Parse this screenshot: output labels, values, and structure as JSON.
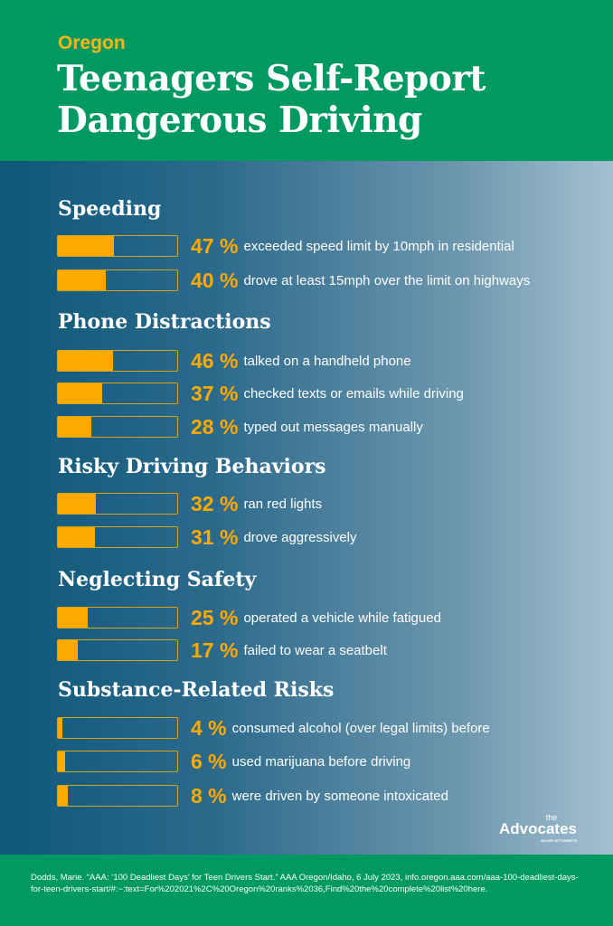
{
  "header": {
    "state": "Oregon",
    "title_line1": "Teenagers Self-Report",
    "title_line2": "Dangerous Driving"
  },
  "chart_data": {
    "type": "bar",
    "title": "Teenagers Self-Report Dangerous Driving",
    "unit": "%",
    "xlim": [
      0,
      100
    ],
    "groups": [
      {
        "name": "Speeding",
        "items": [
          {
            "value": 47,
            "label": "47 %",
            "desc": "exceeded speed limit by 10mph in residential"
          },
          {
            "value": 40,
            "label": "40 %",
            "desc": "drove at least 15mph over the limit on highways"
          }
        ]
      },
      {
        "name": "Phone Distractions",
        "items": [
          {
            "value": 46,
            "label": "46 %",
            "desc": "talked on a handheld phone"
          },
          {
            "value": 37,
            "label": "37 %",
            "desc": "checked texts or emails while driving"
          },
          {
            "value": 28,
            "label": "28 %",
            "desc": "typed out messages manually"
          }
        ]
      },
      {
        "name": "Risky Driving Behaviors",
        "items": [
          {
            "value": 32,
            "label": "32 %",
            "desc": "ran red lights"
          },
          {
            "value": 31,
            "label": "31 %",
            "desc": "drove aggressively"
          }
        ]
      },
      {
        "name": "Neglecting Safety",
        "items": [
          {
            "value": 25,
            "label": "25 %",
            "desc": "operated a vehicle while fatigued"
          },
          {
            "value": 17,
            "label": "17 %",
            "desc": "failed to wear a seatbelt"
          }
        ]
      },
      {
        "name": "Substance-Related Risks",
        "items": [
          {
            "value": 4,
            "label": "4 %",
            "desc": "consumed alcohol (over legal limits) before"
          },
          {
            "value": 6,
            "label": "6 %",
            "desc": "used marijuana before driving"
          },
          {
            "value": 8,
            "label": "8 %",
            "desc": "were driven by someone intoxicated"
          }
        ]
      }
    ]
  },
  "logo": {
    "the": "the",
    "name": "Advocates",
    "tagline": "INJURY ATTORNEYS"
  },
  "footer": {
    "citation": "Dodds, Marie. “AAA: ‘100 Deadliest Days’ for Teen Drivers Start.” AAA Oregon/Idaho, 6 July 2023, info.oregon.aaa.com/aaa-100-deadliest-days-for-teen-drivers-start/#:~:text=For%202021%2C%20Oregon%20ranks%2036,Find%20the%20complete%20list%20here."
  },
  "colors": {
    "green": "#019962",
    "orange": "#fdaa00",
    "blue": "#0e5878"
  }
}
